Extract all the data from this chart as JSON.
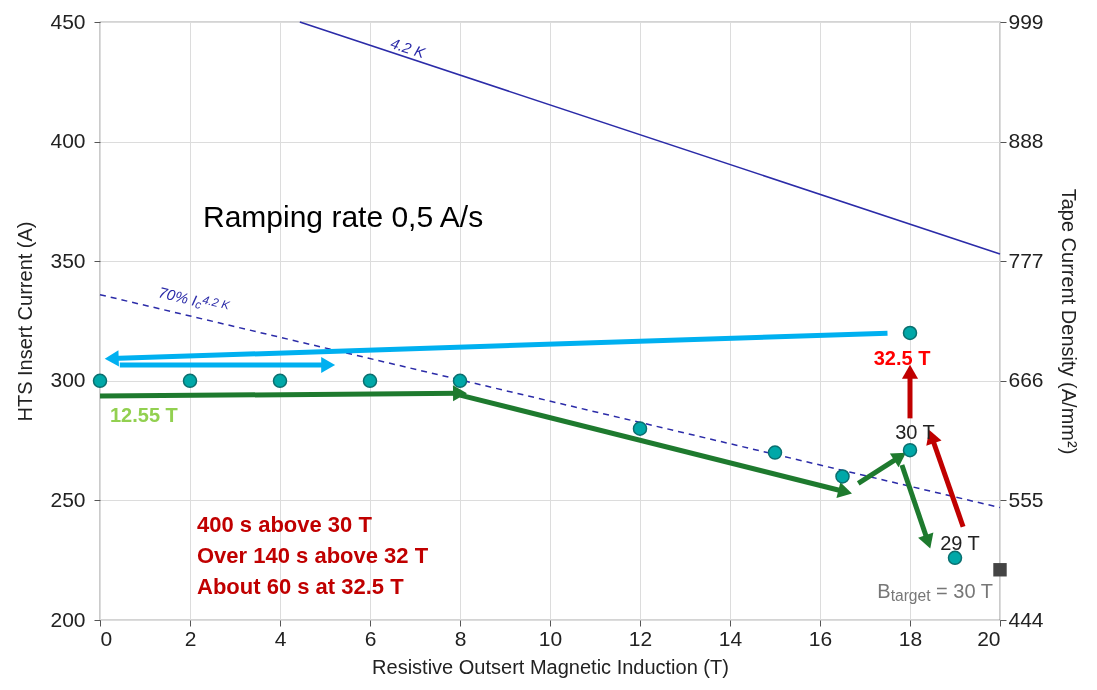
{
  "chart_data": {
    "type": "scatter",
    "xlabel": "Resistive Outsert Magnetic Induction (T)",
    "ylabel": "HTS Insert Current (A)",
    "y2label": "Tape Current Density (A/mm²)",
    "xlim": [
      0,
      20
    ],
    "xticks": [
      0,
      2,
      4,
      6,
      8,
      10,
      12,
      14,
      16,
      18,
      20
    ],
    "ylim": [
      200,
      450
    ],
    "yticks": [
      200,
      250,
      300,
      350,
      400,
      450
    ],
    "y2lim": [
      444,
      999
    ],
    "y2ticks": [
      444,
      555,
      666,
      777,
      888,
      999
    ],
    "grid": true,
    "series": [
      {
        "type": "line",
        "name": "4.2 K",
        "color": "#2b2ba8",
        "x": [
          4.44,
          20
        ],
        "values": [
          450,
          353
        ]
      },
      {
        "type": "line",
        "name": "70% I$_{c}$$^{4.2 K}$",
        "color": "#2b2ba8",
        "line_style": "dashed",
        "x": [
          0,
          20
        ],
        "values": [
          336,
          247
        ]
      },
      {
        "type": "line",
        "color": "#00b0f0",
        "x": [
          17.5,
          0.26
        ],
        "values": [
          319.9,
          309.3
        ]
      },
      {
        "type": "line",
        "color": "#00b0f0",
        "x": [
          0.44,
          5.07
        ],
        "values": [
          306.6,
          306.6
        ]
      },
      {
        "type": "line",
        "color": "#1e7a2e",
        "x": [
          0,
          8
        ],
        "values": [
          293.6,
          294.8
        ]
      },
      {
        "type": "line",
        "color": "#1e7a2e",
        "x": [
          8,
          16.56
        ],
        "values": [
          294,
          253.6
        ]
      },
      {
        "type": "line",
        "color": "#1e7a2e",
        "x": [
          16.85,
          17.78
        ],
        "values": [
          257.1,
          268.3
        ]
      },
      {
        "type": "line",
        "color": "#1e7a2e",
        "x": [
          17.82,
          18.4
        ],
        "values": [
          264.8,
          232.7
        ]
      },
      {
        "type": "line",
        "color": "#c00000",
        "x": [
          19.18,
          18.48
        ],
        "values": [
          239,
          276.7
        ]
      },
      {
        "type": "line",
        "color": "#c00000",
        "x": [
          18,
          18
        ],
        "values": [
          284.3,
          303.8
        ]
      },
      {
        "color": "#00a8a8",
        "marker": "circle",
        "x": [
          0,
          2,
          4,
          6,
          8,
          12,
          15,
          16.5,
          18,
          18,
          19
        ],
        "values": [
          300,
          300,
          300,
          300,
          300,
          280,
          270,
          260,
          271,
          320,
          226
        ]
      },
      {
        "type": "scatter",
        "color": "#444444",
        "marker": "square",
        "x": [
          20
        ],
        "values": [
          221
        ]
      }
    ],
    "annotations": [
      "Ramping rate 0,5 A/s",
      {
        "text": "12.55 T",
        "x": 0,
        "y": 300
      },
      {
        "text": "32.5 T",
        "x": 18,
        "y": 320
      },
      {
        "text": "30 T",
        "x": 18,
        "y": 271
      },
      {
        "text": "29 T",
        "x": 19,
        "y": 226
      },
      {
        "text": "B$_{target}$ = 30 T",
        "x": 20,
        "y": 221
      },
      "400 s above 30 T",
      "Over 140 s above 32 T",
      "About 60 s at 32.5 T"
    ]
  }
}
